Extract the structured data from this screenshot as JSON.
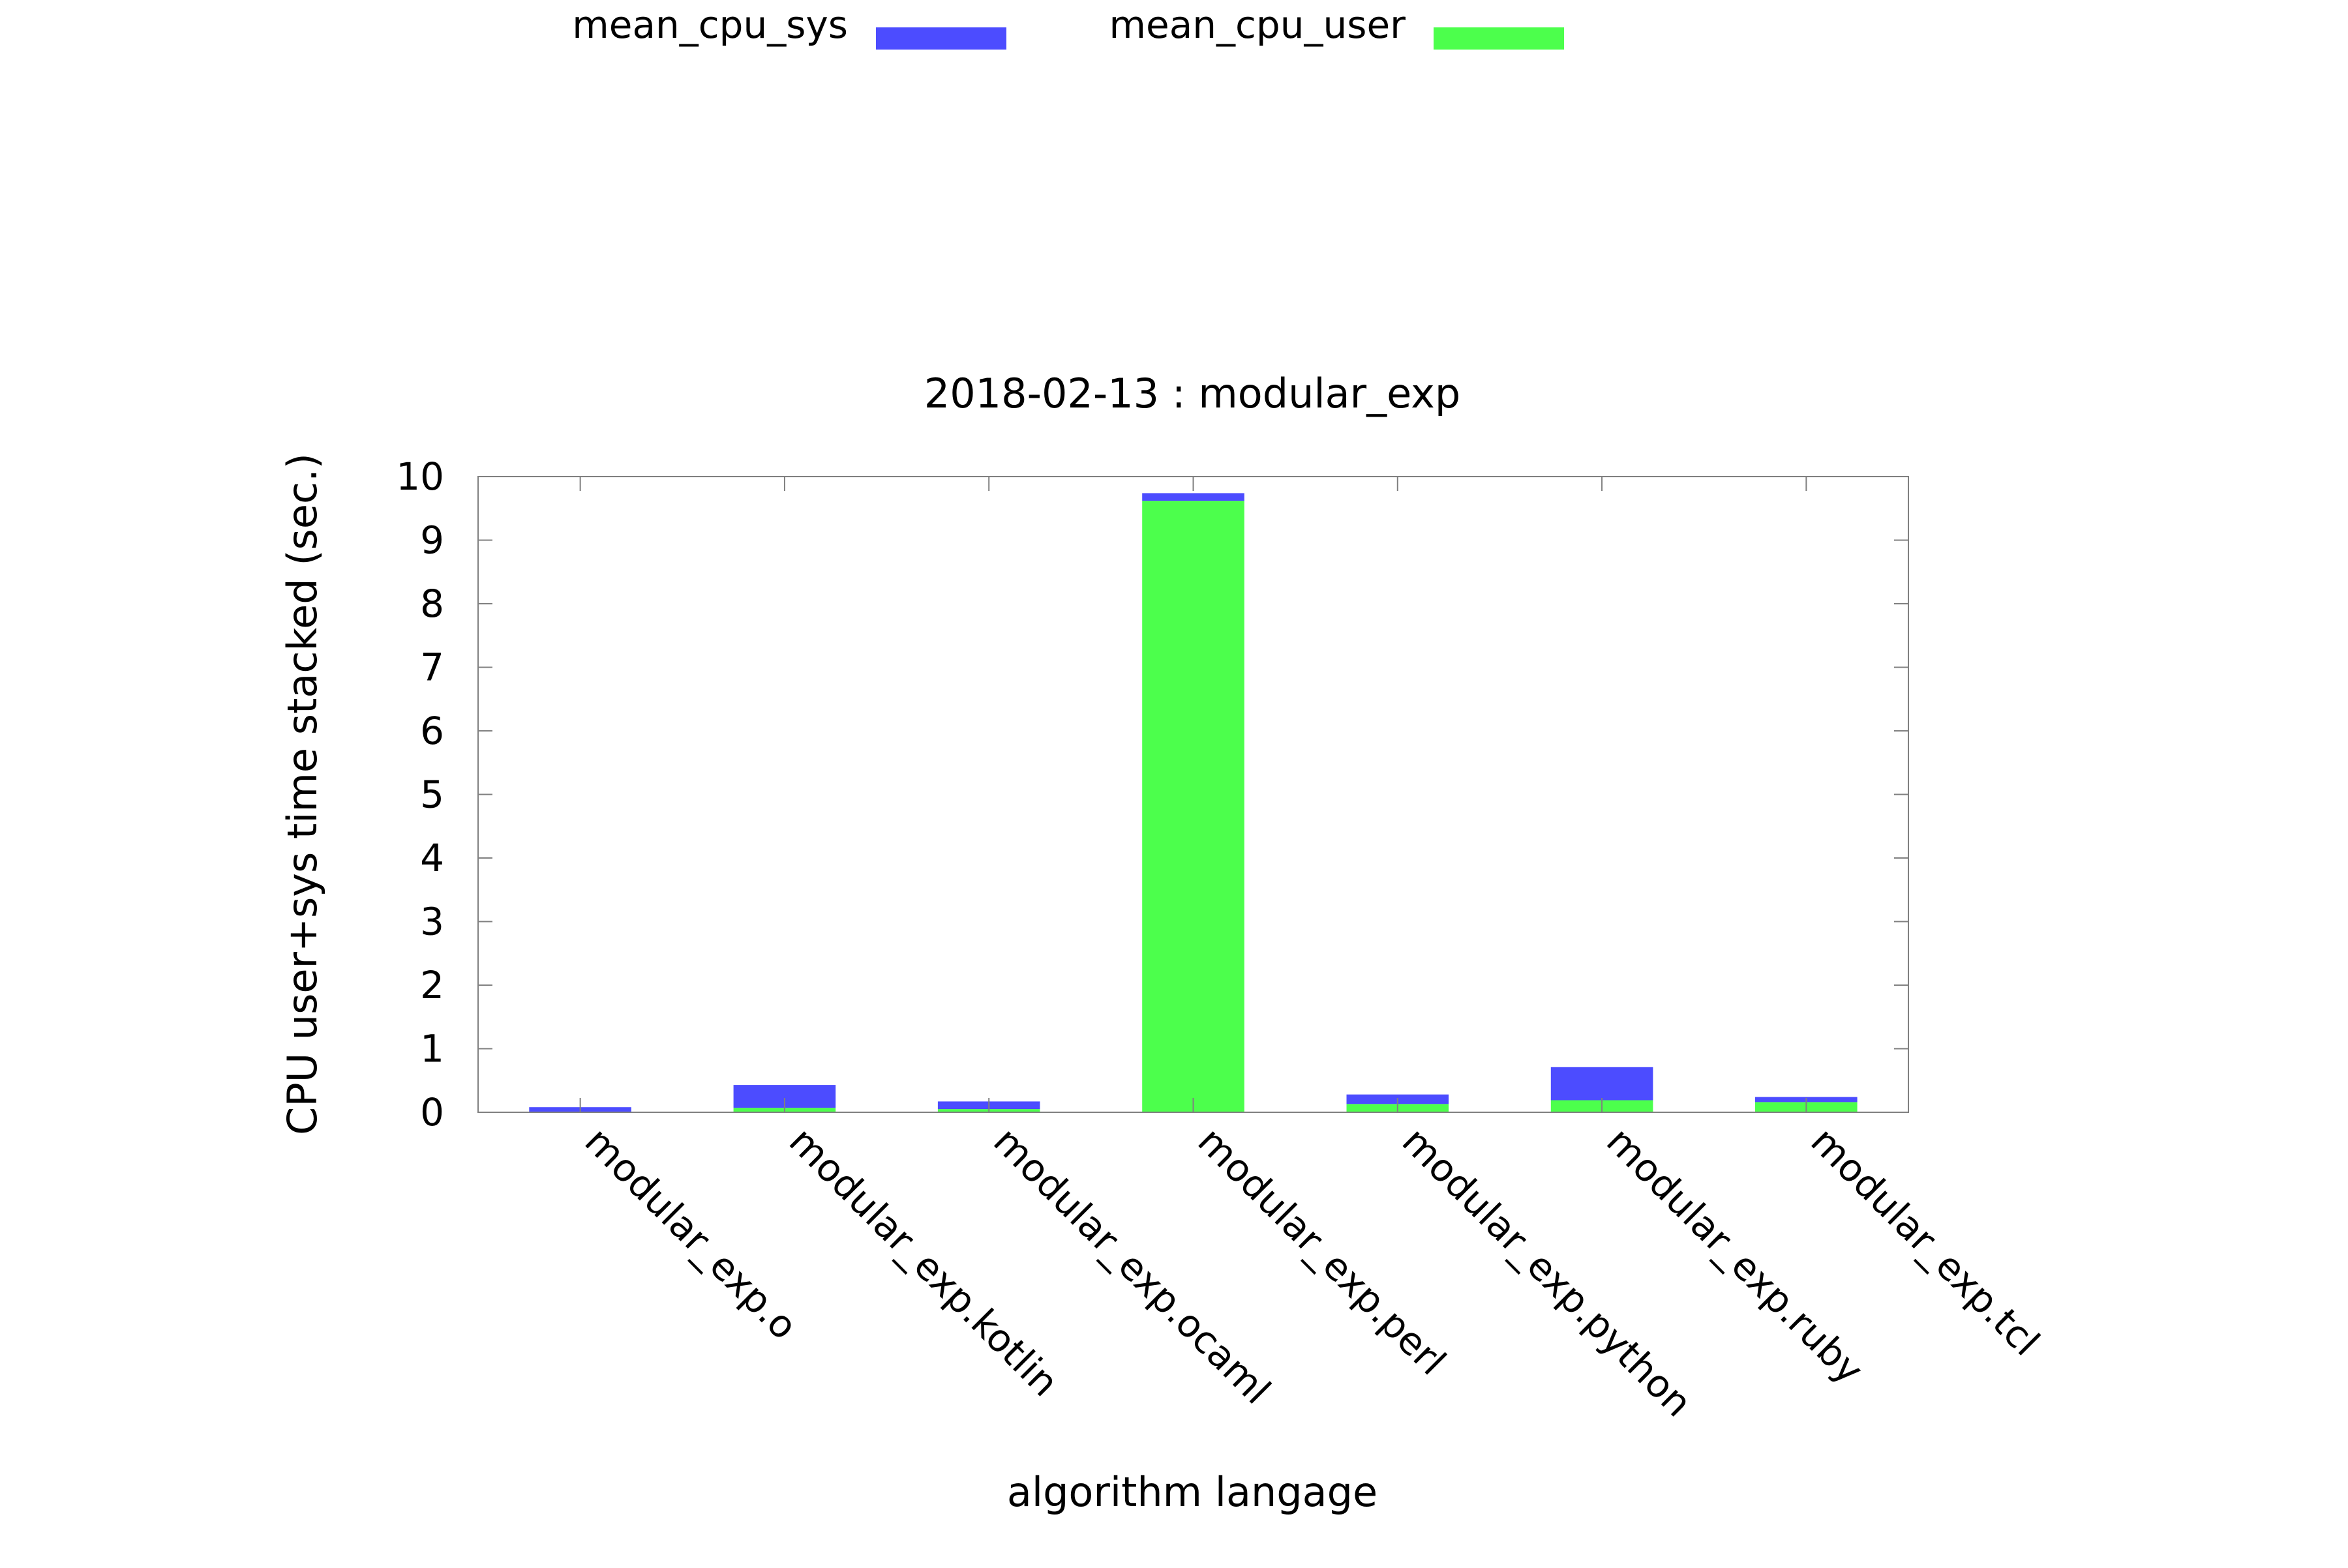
{
  "chart_data": {
    "type": "bar",
    "stacked": true,
    "title": "2018-02-13 : modular_exp",
    "xlabel": "algorithm langage",
    "ylabel": "CPU user+sys time stacked (sec.)",
    "ylim": [
      0,
      10
    ],
    "yticks": [
      "0",
      "1",
      "2",
      "3",
      "4",
      "5",
      "6",
      "7",
      "8",
      "9",
      "10"
    ],
    "grid": false,
    "legend_position": "top",
    "categories": [
      "modular_exp.o",
      "modular_exp.kotlin",
      "modular_exp.ocaml",
      "modular_exp.perl",
      "modular_exp.python",
      "modular_exp.ruby",
      "modular_exp.tcl"
    ],
    "series": [
      {
        "name": "mean_cpu_user",
        "color": "#4cff4c",
        "values": [
          0.01,
          0.07,
          0.05,
          9.62,
          0.13,
          0.19,
          0.16
        ]
      },
      {
        "name": "mean_cpu_sys",
        "color": "#4c4cff",
        "values": [
          0.07,
          0.36,
          0.12,
          0.12,
          0.15,
          0.52,
          0.08
        ]
      }
    ],
    "legend": [
      {
        "label": "mean_cpu_sys",
        "color": "#4c4cff"
      },
      {
        "label": "mean_cpu_user",
        "color": "#4cff4c"
      }
    ]
  }
}
